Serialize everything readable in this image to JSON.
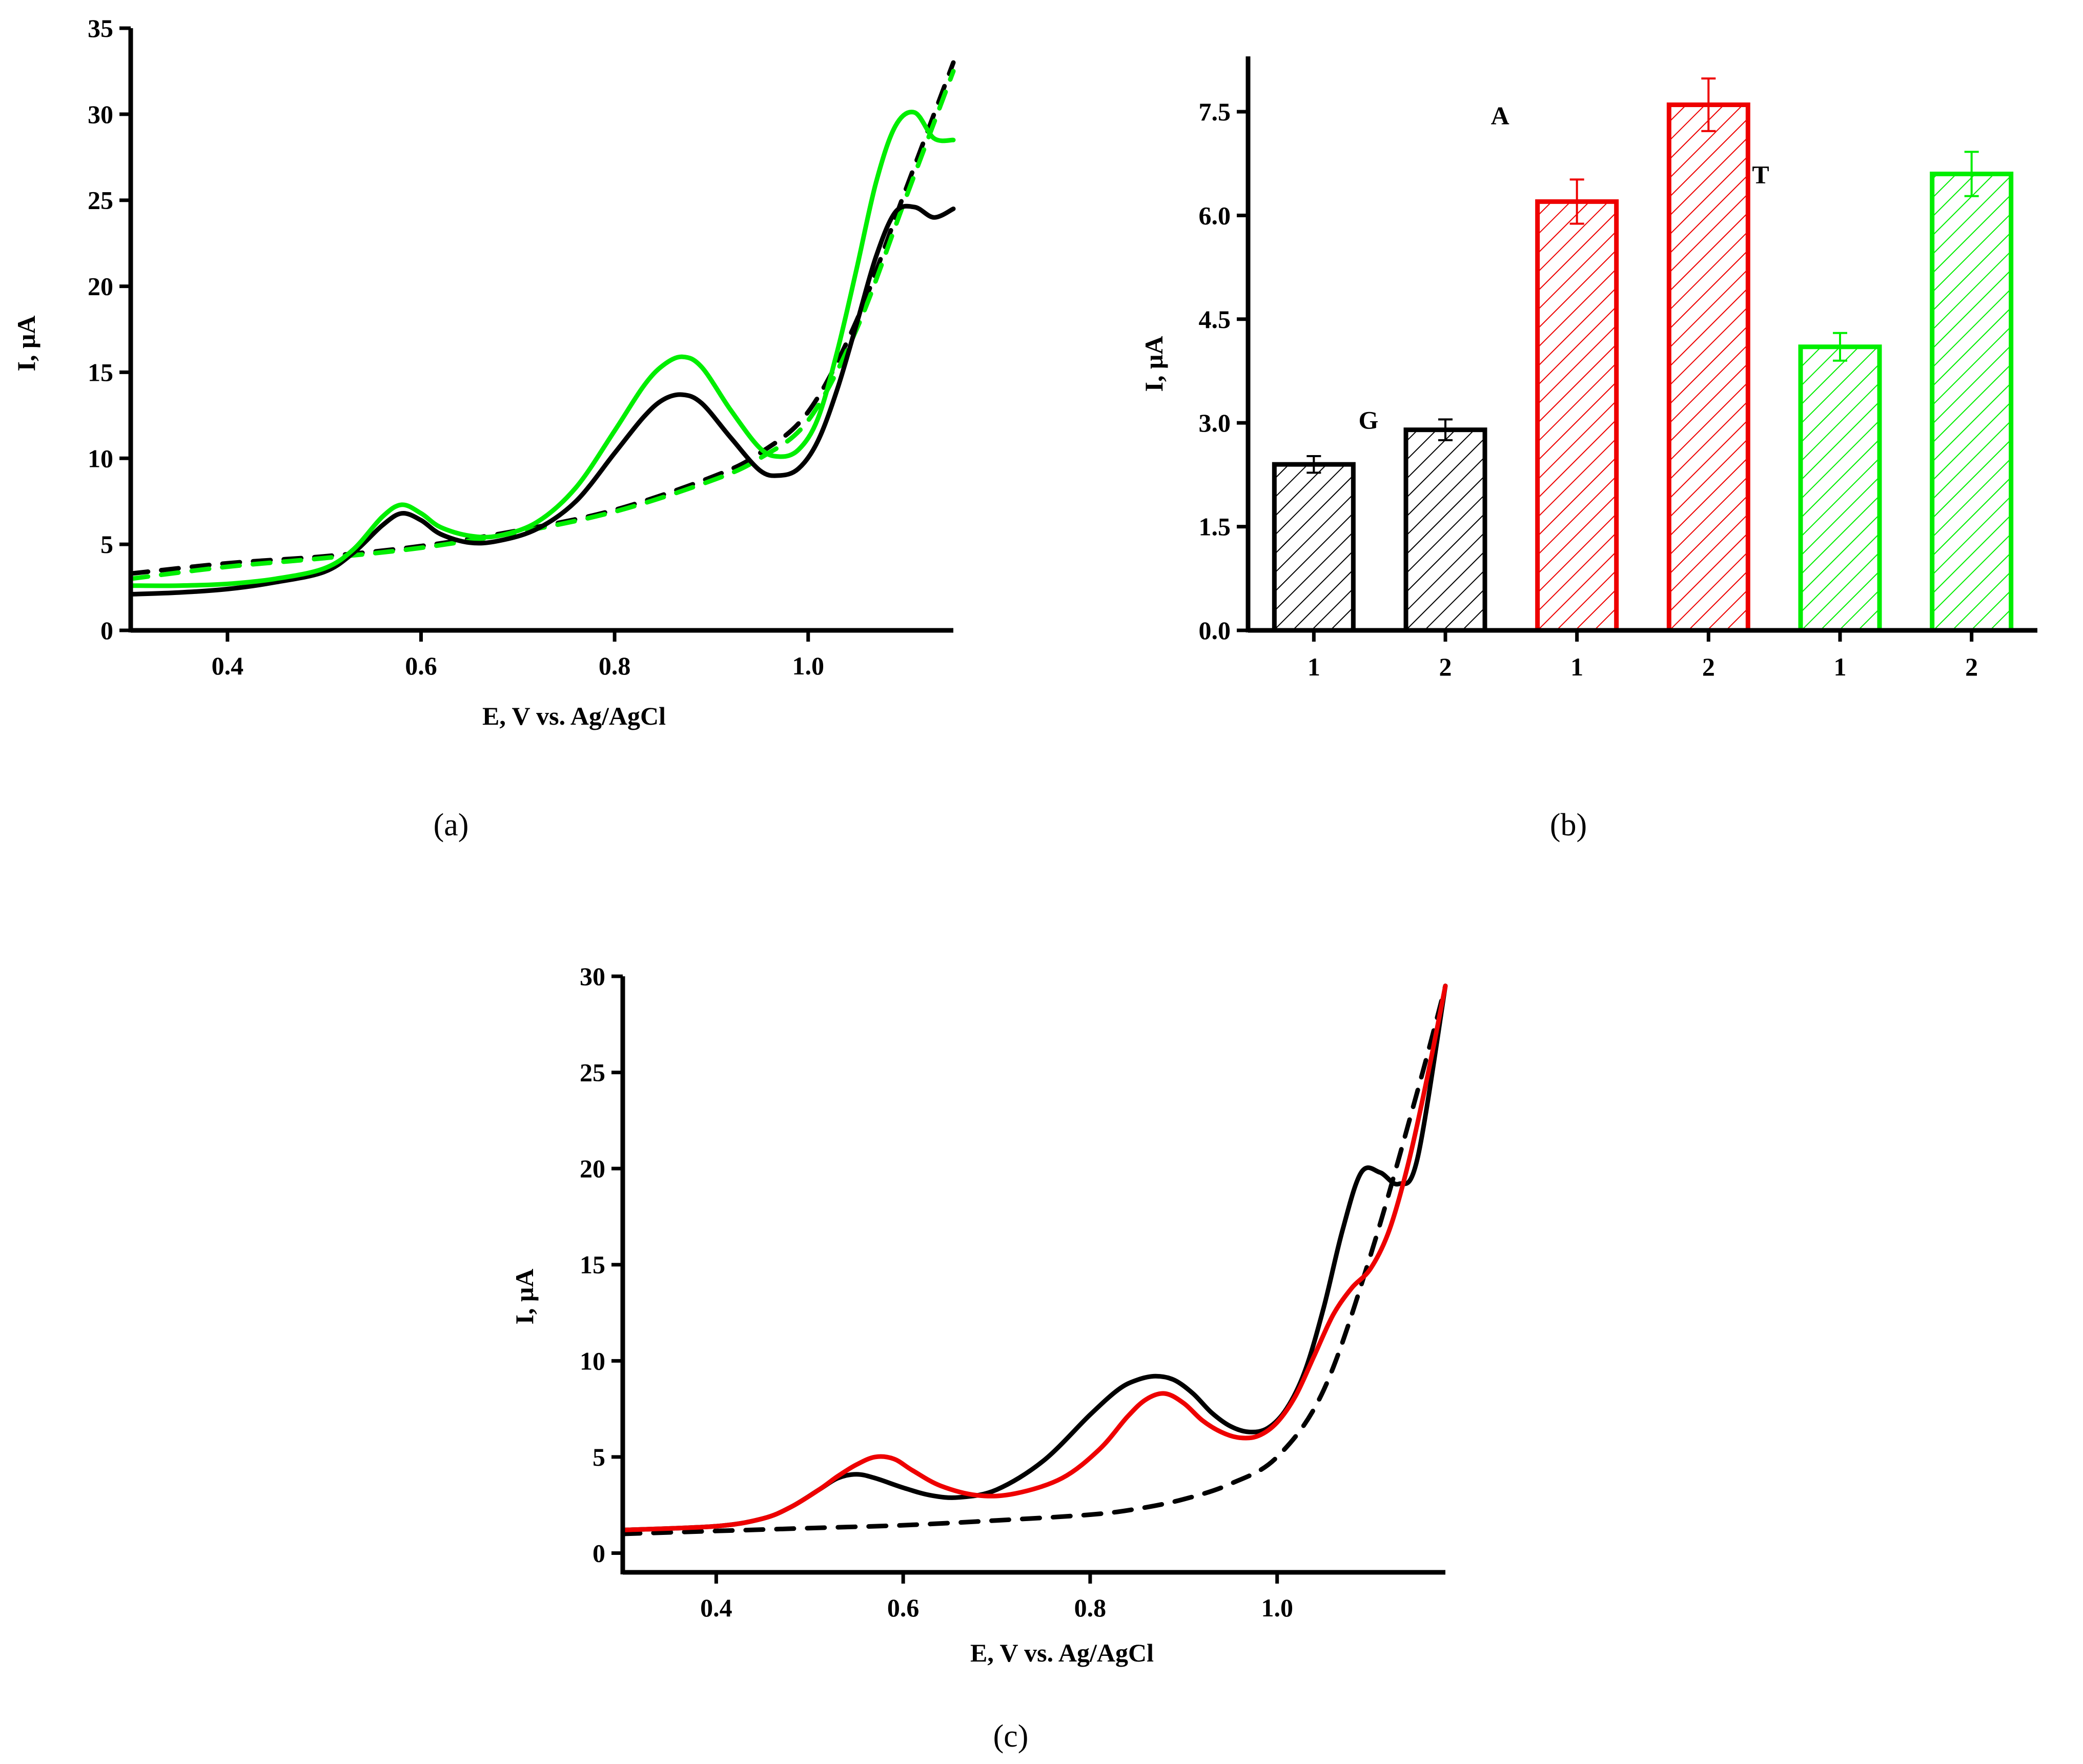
{
  "chart_data": [
    {
      "id": "a",
      "type": "line",
      "panel_label": "(a)",
      "xlabel": "E, V vs. Ag/AgCl",
      "ylabel": "I, μA",
      "xlim": [
        0.3,
        1.15
      ],
      "ylim": [
        0,
        35
      ],
      "xticks": [
        0.4,
        0.6,
        0.8,
        1.0
      ],
      "yticks": [
        0,
        5,
        10,
        15,
        20,
        25,
        30,
        35
      ],
      "grid": false,
      "series": [
        {
          "color": "#000000",
          "dash": true,
          "x": [
            0.3,
            0.4,
            0.5,
            0.6,
            0.7,
            0.8,
            0.9,
            0.95,
            1.0,
            1.05,
            1.1,
            1.15
          ],
          "y": [
            3.3,
            3.9,
            4.3,
            4.9,
            5.8,
            7.0,
            8.9,
            10.3,
            12.7,
            18.0,
            25.5,
            33.0
          ]
        },
        {
          "color": "#00ee00",
          "dash": true,
          "x": [
            0.3,
            0.4,
            0.5,
            0.6,
            0.7,
            0.8,
            0.9,
            0.95,
            1.0,
            1.05,
            1.1,
            1.15
          ],
          "y": [
            3.0,
            3.7,
            4.2,
            4.8,
            5.7,
            6.9,
            8.7,
            10.0,
            12.2,
            17.5,
            25.0,
            32.5
          ]
        },
        {
          "color": "#000000",
          "dash": false,
          "x": [
            0.3,
            0.35,
            0.4,
            0.45,
            0.5,
            0.53,
            0.56,
            0.58,
            0.6,
            0.62,
            0.65,
            0.68,
            0.72,
            0.76,
            0.8,
            0.83,
            0.85,
            0.87,
            0.89,
            0.92,
            0.95,
            0.97,
            0.99,
            1.01,
            1.03,
            1.05,
            1.07,
            1.09,
            1.11,
            1.13,
            1.15
          ],
          "y": [
            2.1,
            2.2,
            2.4,
            2.8,
            3.4,
            4.5,
            6.1,
            6.8,
            6.4,
            5.6,
            5.1,
            5.2,
            5.9,
            7.5,
            10.3,
            12.4,
            13.4,
            13.7,
            13.2,
            11.2,
            9.3,
            9.0,
            9.4,
            11.0,
            14.0,
            17.8,
            21.7,
            24.3,
            24.6,
            24.0,
            24.5
          ]
        },
        {
          "color": "#00ee00",
          "dash": false,
          "x": [
            0.3,
            0.35,
            0.4,
            0.45,
            0.5,
            0.53,
            0.56,
            0.58,
            0.6,
            0.62,
            0.65,
            0.68,
            0.72,
            0.76,
            0.8,
            0.83,
            0.85,
            0.87,
            0.89,
            0.92,
            0.95,
            0.97,
            0.99,
            1.01,
            1.03,
            1.05,
            1.07,
            1.09,
            1.11,
            1.13,
            1.15
          ],
          "y": [
            2.6,
            2.6,
            2.7,
            3.0,
            3.6,
            4.7,
            6.6,
            7.3,
            6.8,
            6.0,
            5.5,
            5.5,
            6.3,
            8.3,
            11.6,
            14.2,
            15.4,
            15.9,
            15.3,
            12.8,
            10.6,
            10.1,
            10.5,
            12.3,
            16.2,
            21.0,
            26.0,
            29.3,
            30.1,
            28.6,
            28.5
          ]
        }
      ]
    },
    {
      "id": "b",
      "type": "bar",
      "panel_label": "(b)",
      "xlabel": "",
      "ylabel": "I, μA",
      "ylim": [
        0,
        8.3
      ],
      "yticks": [
        0.0,
        1.5,
        3.0,
        4.5,
        6.0,
        7.5
      ],
      "ytick_labels": [
        "0.0",
        "1.5",
        "3.0",
        "4.5",
        "6.0",
        "7.5"
      ],
      "categories": [
        "1",
        "2",
        "1",
        "2",
        "1",
        "2"
      ],
      "values": [
        2.4,
        2.9,
        6.2,
        7.6,
        4.1,
        6.6
      ],
      "errors": [
        0.12,
        0.15,
        0.32,
        0.38,
        0.2,
        0.32
      ],
      "colors": [
        "#000000",
        "#000000",
        "#ee0000",
        "#ee0000",
        "#00ee00",
        "#00ee00"
      ],
      "fill_pattern": "diagonal-hatch",
      "annotations": [
        {
          "text": "G",
          "bar_index": 1,
          "value": 3.05
        },
        {
          "text": "A",
          "bar_index": 2,
          "value": 7.45
        },
        {
          "text": "T",
          "bar_index": 4,
          "value": 6.6
        }
      ]
    },
    {
      "id": "c",
      "type": "line",
      "panel_label": "(c)",
      "xlabel": "E, V vs. Ag/AgCl",
      "ylabel": "I, μA",
      "xlim": [
        0.3,
        1.18
      ],
      "ylim": [
        -1,
        30
      ],
      "xticks": [
        0.4,
        0.6,
        0.8,
        1.0
      ],
      "yticks": [
        0,
        5,
        10,
        15,
        20,
        25,
        30
      ],
      "grid": false,
      "series": [
        {
          "color": "#000000",
          "dash": true,
          "x": [
            0.3,
            0.4,
            0.5,
            0.6,
            0.7,
            0.8,
            0.85,
            0.9,
            0.95,
            1.0,
            1.05,
            1.1,
            1.15,
            1.18
          ],
          "y": [
            1.0,
            1.15,
            1.3,
            1.45,
            1.7,
            2.0,
            2.3,
            2.8,
            3.6,
            5.0,
            8.5,
            15.5,
            24.0,
            29.5
          ]
        },
        {
          "color": "#000000",
          "dash": false,
          "x": [
            0.3,
            0.4,
            0.45,
            0.48,
            0.51,
            0.53,
            0.55,
            0.57,
            0.6,
            0.63,
            0.66,
            0.7,
            0.75,
            0.8,
            0.83,
            0.85,
            0.87,
            0.89,
            0.91,
            0.93,
            0.95,
            0.97,
            0.99,
            1.01,
            1.03,
            1.05,
            1.07,
            1.09,
            1.11,
            1.13,
            1.15,
            1.18
          ],
          "y": [
            1.2,
            1.4,
            1.8,
            2.4,
            3.3,
            3.9,
            4.1,
            3.9,
            3.4,
            3.0,
            2.9,
            3.3,
            4.8,
            7.2,
            8.5,
            9.0,
            9.2,
            9.0,
            8.3,
            7.3,
            6.6,
            6.3,
            6.5,
            7.5,
            9.5,
            12.8,
            16.8,
            19.8,
            19.8,
            19.2,
            20.5,
            29.5
          ]
        },
        {
          "color": "#ee0000",
          "dash": false,
          "x": [
            0.3,
            0.4,
            0.45,
            0.48,
            0.51,
            0.53,
            0.55,
            0.57,
            0.59,
            0.61,
            0.64,
            0.68,
            0.72,
            0.77,
            0.81,
            0.84,
            0.86,
            0.88,
            0.9,
            0.92,
            0.94,
            0.96,
            0.98,
            1.0,
            1.02,
            1.04,
            1.06,
            1.08,
            1.1,
            1.12,
            1.14,
            1.16,
            1.18
          ],
          "y": [
            1.2,
            1.4,
            1.8,
            2.4,
            3.3,
            4.0,
            4.6,
            5.0,
            4.9,
            4.3,
            3.5,
            3.0,
            3.1,
            3.9,
            5.4,
            7.1,
            8.0,
            8.3,
            7.8,
            6.9,
            6.3,
            6.0,
            6.1,
            6.8,
            8.2,
            10.3,
            12.4,
            13.8,
            14.8,
            16.8,
            20.2,
            24.6,
            29.5
          ]
        }
      ]
    }
  ]
}
